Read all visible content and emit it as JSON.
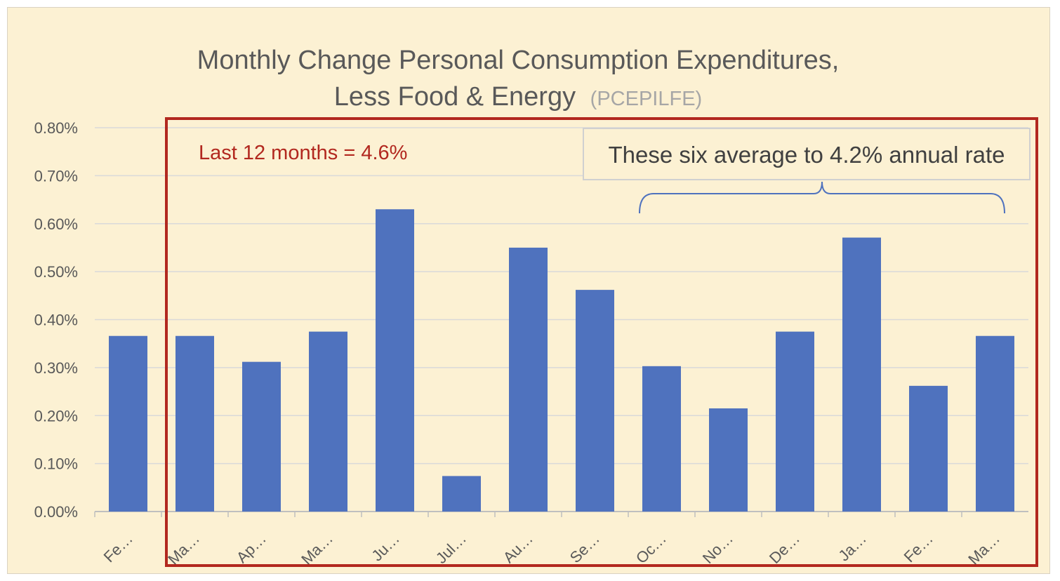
{
  "chart_data": {
    "type": "bar",
    "title": "Monthly Change Personal Consumption Expenditures,",
    "title_line2": "Less Food & Energy",
    "title_suffix": "(PCEPILFE)",
    "categories": [
      "Fe…",
      "Ma…",
      "Ap…",
      "Ma…",
      "Ju…",
      "Jul…",
      "Au…",
      "Se…",
      "Oc…",
      "No…",
      "De…",
      "Ja…",
      "Fe…",
      "Ma…"
    ],
    "values": [
      0.00366,
      0.00366,
      0.00312,
      0.00375,
      0.0063,
      0.00074,
      0.0055,
      0.00462,
      0.00303,
      0.00215,
      0.00375,
      0.00571,
      0.00262,
      0.00366
    ],
    "ylim": [
      0,
      0.008
    ],
    "yticks": [
      "0.00%",
      "0.10%",
      "0.20%",
      "0.30%",
      "0.40%",
      "0.50%",
      "0.60%",
      "0.70%",
      "0.80%"
    ],
    "xlabel": "",
    "ylabel": "",
    "grid": true,
    "bar_color": "#4f72be",
    "highlight_box_color": "#b2281f",
    "annotations": {
      "last12": "Last 12 months = 4.6%",
      "six_avg": "These six average to 4.2% annual rate"
    }
  }
}
